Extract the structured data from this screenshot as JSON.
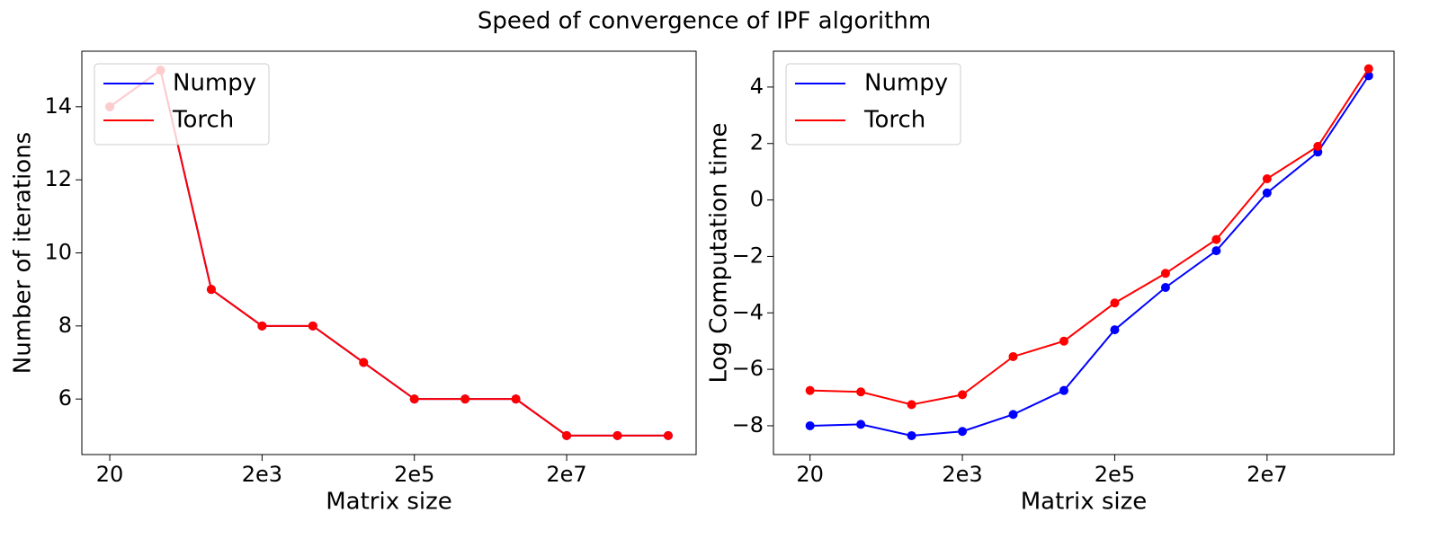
{
  "title": "Speed of convergence of IPF algorithm",
  "chart_data": [
    {
      "type": "line",
      "xlabel": "Matrix size",
      "ylabel": "Number of iterations",
      "categories": [
        "20",
        null,
        null,
        "2e3",
        null,
        null,
        "2e5",
        null,
        null,
        "2e7",
        null,
        null
      ],
      "series": [
        {
          "name": "Numpy",
          "color": "#0000ff",
          "values": [
            14,
            15,
            9,
            8,
            8,
            7,
            6,
            6,
            6,
            5,
            5,
            5
          ]
        },
        {
          "name": "Torch",
          "color": "#ff0000",
          "values": [
            14,
            15,
            9,
            8,
            8,
            7,
            6,
            6,
            6,
            5,
            5,
            5
          ]
        }
      ],
      "xlim": [
        -0.55,
        11.55
      ],
      "ylim": [
        4.48,
        15.52
      ],
      "yticks": [
        6,
        8,
        10,
        12,
        14
      ],
      "legend": "upper left"
    },
    {
      "type": "line",
      "xlabel": "Matrix size",
      "ylabel": "Log Computation time",
      "categories": [
        "20",
        null,
        null,
        "2e3",
        null,
        null,
        "2e5",
        null,
        null,
        "2e7",
        null,
        null
      ],
      "series": [
        {
          "name": "Numpy",
          "color": "#0000ff",
          "values": [
            -8.0,
            -7.95,
            -8.35,
            -8.2,
            -7.6,
            -6.75,
            -4.6,
            -3.1,
            -1.8,
            0.25,
            1.7,
            4.4
          ]
        },
        {
          "name": "Torch",
          "color": "#ff0000",
          "values": [
            -6.75,
            -6.8,
            -7.25,
            -6.9,
            -5.55,
            -5.0,
            -3.65,
            -2.6,
            -1.4,
            0.75,
            1.9,
            4.65
          ]
        }
      ],
      "xlim": [
        -0.72,
        11.5
      ],
      "ylim": [
        -9.02,
        5.27
      ],
      "yticks": [
        {
          "value": -8,
          "label": "−8"
        },
        {
          "value": -6,
          "label": "−6"
        },
        {
          "value": -4,
          "label": "−4"
        },
        {
          "value": -2,
          "label": "−2"
        },
        0,
        2,
        4
      ],
      "legend": "upper left"
    }
  ]
}
